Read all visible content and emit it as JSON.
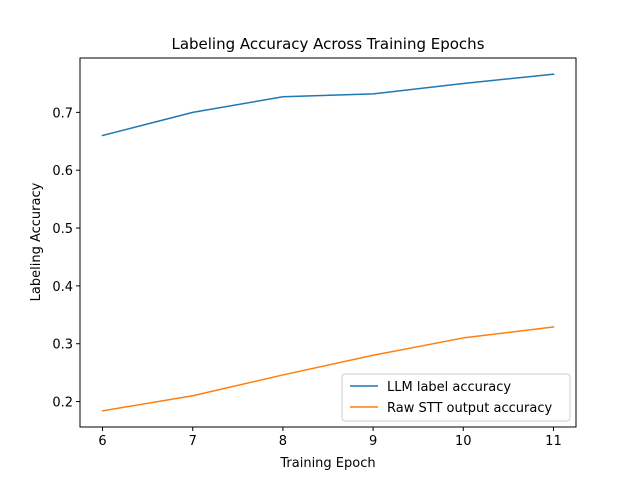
{
  "chart_data": {
    "type": "line",
    "title": "Labeling Accuracy Across Training Epochs",
    "xlabel": "Training Epoch",
    "ylabel": "Labeling Accuracy",
    "x": [
      6,
      7,
      8,
      9,
      10,
      11
    ],
    "xlim": [
      5.75,
      11.25
    ],
    "ylim": [
      0.156,
      0.794
    ],
    "xticks": [
      6,
      7,
      8,
      9,
      10,
      11
    ],
    "yticks": [
      0.2,
      0.3,
      0.4,
      0.5,
      0.6,
      0.7
    ],
    "grid": false,
    "legend_position": "lower-right",
    "series": [
      {
        "name": "LLM label accuracy",
        "color": "#1f77b4",
        "values": [
          0.66,
          0.7,
          0.727,
          0.732,
          0.75,
          0.766
        ]
      },
      {
        "name": "Raw STT output accuracy",
        "color": "#ff7f0e",
        "values": [
          0.184,
          0.21,
          0.246,
          0.28,
          0.31,
          0.329
        ]
      }
    ]
  }
}
